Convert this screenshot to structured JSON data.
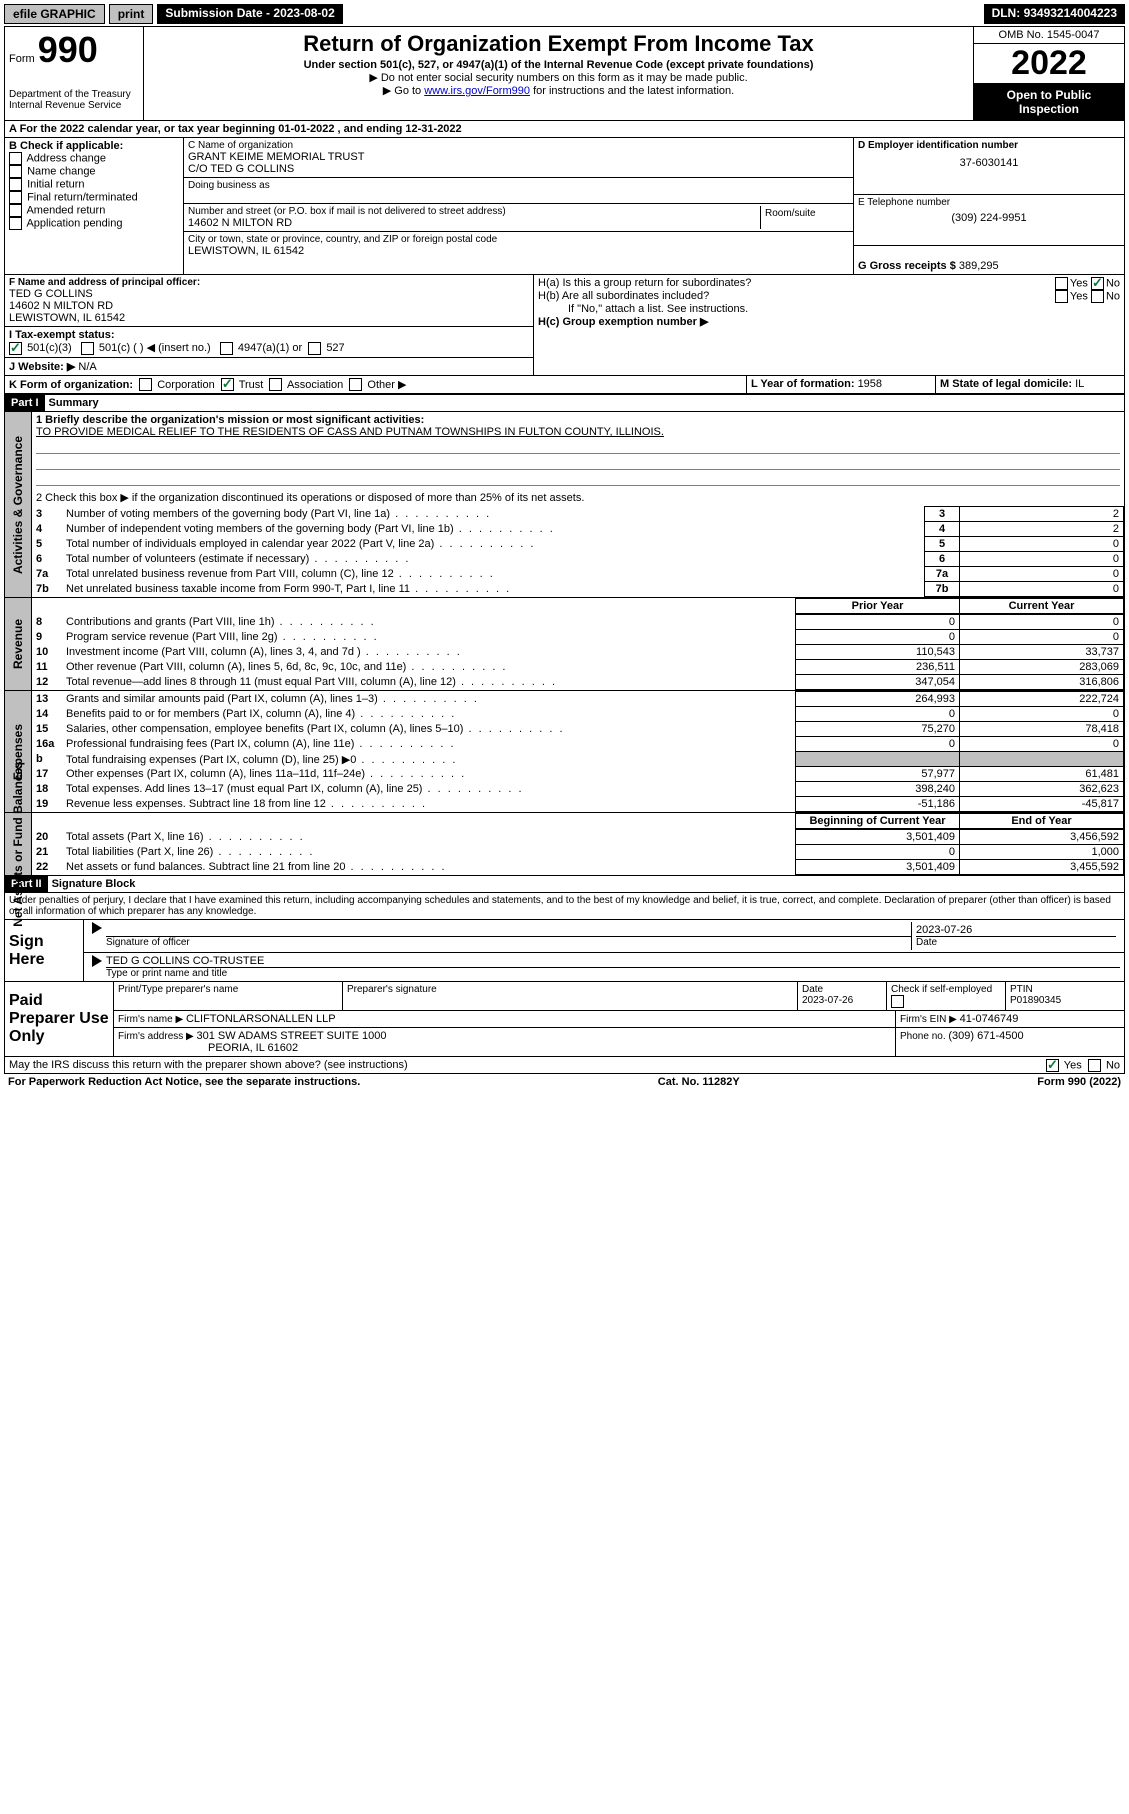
{
  "top_bar": {
    "efile": "efile GRAPHIC",
    "print": "print",
    "sub_label": "Submission Date - ",
    "sub_date": "2023-08-02",
    "dln_label": "DLN: ",
    "dln": "93493214004223"
  },
  "header": {
    "form_word": "Form",
    "form_num": "990",
    "dept": "Department of the Treasury",
    "irs": "Internal Revenue Service",
    "title": "Return of Organization Exempt From Income Tax",
    "subtitle": "Under section 501(c), 527, or 4947(a)(1) of the Internal Revenue Code (except private foundations)",
    "line1": "▶ Do not enter social security numbers on this form as it may be made public.",
    "line2a": "▶ Go to ",
    "line2link": "www.irs.gov/Form990",
    "line2b": " for instructions and the latest information.",
    "omb": "OMB No. 1545-0047",
    "year": "2022",
    "inspect1": "Open to Public",
    "inspect2": "Inspection"
  },
  "period": {
    "label_a": "A For the 2022 calendar year, or tax year beginning ",
    "begin": "01-01-2022",
    "mid": " , and ending ",
    "end": "12-31-2022"
  },
  "boxB": {
    "label": "B Check if applicable:",
    "items": [
      "Address change",
      "Name change",
      "Initial return",
      "Final return/terminated",
      "Amended return",
      "Application pending"
    ]
  },
  "boxC": {
    "label": "C Name of organization",
    "name1": "GRANT KEIME MEMORIAL TRUST",
    "name2": "C/O TED G COLLINS",
    "dba_label": "Doing business as",
    "addr_label": "Number and street (or P.O. box if mail is not delivered to street address)",
    "room_label": "Room/suite",
    "addr": "14602 N MILTON RD",
    "city_label": "City or town, state or province, country, and ZIP or foreign postal code",
    "city": "LEWISTOWN, IL  61542"
  },
  "boxD": {
    "label": "D Employer identification number",
    "val": "37-6030141"
  },
  "boxE": {
    "label": "E Telephone number",
    "val": "(309) 224-9951"
  },
  "boxG": {
    "label": "G Gross receipts $ ",
    "val": "389,295"
  },
  "boxF": {
    "label": "F Name and address of principal officer:",
    "l1": "TED G COLLINS",
    "l2": "14602 N MILTON RD",
    "l3": "LEWISTOWN, IL  61542"
  },
  "boxH": {
    "a": "H(a)  Is this a group return for subordinates?",
    "b": "H(b)  Are all subordinates included?",
    "note": "If \"No,\" attach a list. See instructions.",
    "c": "H(c)  Group exemption number ▶",
    "yes": "Yes",
    "no": "No"
  },
  "boxI": {
    "label": "I  Tax-exempt status:",
    "o1": "501(c)(3)",
    "o2": "501(c) (  ) ◀ (insert no.)",
    "o3": "4947(a)(1) or",
    "o4": "527"
  },
  "boxJ": {
    "label": "J  Website: ▶ ",
    "val": "N/A"
  },
  "boxK": {
    "label": "K Form of organization:",
    "o1": "Corporation",
    "o2": "Trust",
    "o3": "Association",
    "o4": "Other ▶"
  },
  "boxL": {
    "label": "L Year of formation: ",
    "val": "1958"
  },
  "boxM": {
    "label": "M State of legal domicile: ",
    "val": "IL"
  },
  "part1": {
    "hdr": "Part I",
    "title": "Summary",
    "l1a": "1  Briefly describe the organization's mission or most significant activities:",
    "l1b": "TO PROVIDE MEDICAL RELIEF TO THE RESIDENTS OF CASS AND PUTNAM TOWNSHIPS IN FULTON COUNTY, ILLINOIS.",
    "l2": "2  Check this box ▶  if the organization discontinued its operations or disposed of more than 25% of its net assets.",
    "side_ag": "Activities & Governance",
    "side_rev": "Revenue",
    "side_exp": "Expenses",
    "side_na": "Net Assets or Fund Balances",
    "rows_top": [
      {
        "n": "3",
        "t": "Number of voting members of the governing body (Part VI, line 1a)",
        "v": "2"
      },
      {
        "n": "4",
        "t": "Number of independent voting members of the governing body (Part VI, line 1b)",
        "v": "2"
      },
      {
        "n": "5",
        "t": "Total number of individuals employed in calendar year 2022 (Part V, line 2a)",
        "v": "0"
      },
      {
        "n": "6",
        "t": "Total number of volunteers (estimate if necessary)",
        "v": "0"
      },
      {
        "n": "7a",
        "t": "Total unrelated business revenue from Part VIII, column (C), line 12",
        "v": "0"
      },
      {
        "n": "7b",
        "t": "Net unrelated business taxable income from Form 990-T, Part I, line 11",
        "v": "0"
      }
    ],
    "col_prior": "Prior Year",
    "col_curr": "Current Year",
    "rows_rev": [
      {
        "n": "8",
        "t": "Contributions and grants (Part VIII, line 1h)",
        "p": "0",
        "c": "0"
      },
      {
        "n": "9",
        "t": "Program service revenue (Part VIII, line 2g)",
        "p": "0",
        "c": "0"
      },
      {
        "n": "10",
        "t": "Investment income (Part VIII, column (A), lines 3, 4, and 7d )",
        "p": "110,543",
        "c": "33,737"
      },
      {
        "n": "11",
        "t": "Other revenue (Part VIII, column (A), lines 5, 6d, 8c, 9c, 10c, and 11e)",
        "p": "236,511",
        "c": "283,069"
      },
      {
        "n": "12",
        "t": "Total revenue—add lines 8 through 11 (must equal Part VIII, column (A), line 12)",
        "p": "347,054",
        "c": "316,806"
      }
    ],
    "rows_exp": [
      {
        "n": "13",
        "t": "Grants and similar amounts paid (Part IX, column (A), lines 1–3)",
        "p": "264,993",
        "c": "222,724"
      },
      {
        "n": "14",
        "t": "Benefits paid to or for members (Part IX, column (A), line 4)",
        "p": "0",
        "c": "0"
      },
      {
        "n": "15",
        "t": "Salaries, other compensation, employee benefits (Part IX, column (A), lines 5–10)",
        "p": "75,270",
        "c": "78,418"
      },
      {
        "n": "16a",
        "t": "Professional fundraising fees (Part IX, column (A), line 11e)",
        "p": "0",
        "c": "0"
      },
      {
        "n": "b",
        "t": "Total fundraising expenses (Part IX, column (D), line 25) ▶0",
        "p": "",
        "c": ""
      },
      {
        "n": "17",
        "t": "Other expenses (Part IX, column (A), lines 11a–11d, 11f–24e)",
        "p": "57,977",
        "c": "61,481"
      },
      {
        "n": "18",
        "t": "Total expenses. Add lines 13–17 (must equal Part IX, column (A), line 25)",
        "p": "398,240",
        "c": "362,623"
      },
      {
        "n": "19",
        "t": "Revenue less expenses. Subtract line 18 from line 12",
        "p": "-51,186",
        "c": "-45,817"
      }
    ],
    "col_boy": "Beginning of Current Year",
    "col_eoy": "End of Year",
    "rows_na": [
      {
        "n": "20",
        "t": "Total assets (Part X, line 16)",
        "p": "3,501,409",
        "c": "3,456,592"
      },
      {
        "n": "21",
        "t": "Total liabilities (Part X, line 26)",
        "p": "0",
        "c": "1,000"
      },
      {
        "n": "22",
        "t": "Net assets or fund balances. Subtract line 21 from line 20",
        "p": "3,501,409",
        "c": "3,455,592"
      }
    ]
  },
  "part2": {
    "hdr": "Part II",
    "title": "Signature Block",
    "decl": "Under penalties of perjury, I declare that I have examined this return, including accompanying schedules and statements, and to the best of my knowledge and belief, it is true, correct, and complete. Declaration of preparer (other than officer) is based on all information of which preparer has any knowledge.",
    "sign_here": "Sign Here",
    "sig_officer": "Signature of officer",
    "sig_date": "Date",
    "sig_date_val": "2023-07-26",
    "sig_name": "TED G COLLINS CO-TRUSTEE",
    "sig_title": "Type or print name and title",
    "paid": "Paid Preparer Use Only",
    "pp_name_lbl": "Print/Type preparer's name",
    "pp_sig_lbl": "Preparer's signature",
    "pp_date_lbl": "Date",
    "pp_date": "2023-07-26",
    "pp_check": "Check       if self-employed",
    "pp_ptin_lbl": "PTIN",
    "pp_ptin": "P01890345",
    "firm_name_lbl": "Firm's name     ▶ ",
    "firm_name": "CLIFTONLARSONALLEN LLP",
    "firm_ein_lbl": "Firm's EIN ▶ ",
    "firm_ein": "41-0746749",
    "firm_addr_lbl": "Firm's address ▶ ",
    "firm_addr1": "301 SW ADAMS STREET SUITE 1000",
    "firm_addr2": "PEORIA, IL  61602",
    "firm_phone_lbl": "Phone no. ",
    "firm_phone": "(309) 671-4500",
    "discuss": "May the IRS discuss this return with the preparer shown above? (see instructions)",
    "yes": "Yes",
    "no": "No"
  },
  "footer": {
    "left": "For Paperwork Reduction Act Notice, see the separate instructions.",
    "mid": "Cat. No. 11282Y",
    "right": "Form 990 (2022)"
  }
}
